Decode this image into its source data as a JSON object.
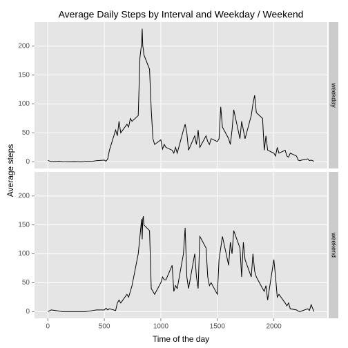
{
  "chart_data": {
    "type": "line",
    "facets": true,
    "title": "Average Daily Steps by Interval and Weekday / Weekend",
    "x_label": "Time of the day",
    "y_label": "Average steps",
    "xlim": [
      -117.75,
      2472.75
    ],
    "xticks": [
      0,
      500,
      1000,
      1500,
      2000
    ],
    "ylim": [
      -11.5,
      241.5
    ],
    "yticks": [
      0,
      50,
      100,
      150,
      200
    ],
    "grid": true,
    "x": [
      0,
      30,
      100,
      130,
      200,
      230,
      300,
      330,
      400,
      430,
      500,
      515,
      530,
      545,
      600,
      615,
      630,
      645,
      700,
      715,
      730,
      745,
      800,
      815,
      830,
      835,
      840,
      845,
      850,
      900,
      915,
      930,
      945,
      1000,
      1015,
      1030,
      1045,
      1100,
      1115,
      1130,
      1145,
      1200,
      1215,
      1230,
      1245,
      1300,
      1315,
      1330,
      1345,
      1400,
      1415,
      1430,
      1445,
      1500,
      1515,
      1530,
      1545,
      1600,
      1615,
      1630,
      1645,
      1700,
      1715,
      1730,
      1745,
      1800,
      1815,
      1830,
      1845,
      1900,
      1915,
      1930,
      1945,
      2000,
      2015,
      2030,
      2045,
      2100,
      2115,
      2130,
      2145,
      2200,
      2215,
      2230,
      2245,
      2300,
      2315,
      2330,
      2355
    ],
    "series": [
      {
        "name": "weekday",
        "color": "#000000",
        "values": [
          2.3,
          0.5,
          1,
          0.5,
          0.3,
          0.5,
          0.2,
          0.8,
          1,
          2,
          3,
          1,
          5,
          20,
          55,
          45,
          70,
          50,
          65,
          60,
          75,
          70,
          80,
          180,
          205,
          230,
          200,
          195,
          185,
          160,
          90,
          40,
          30,
          38,
          22,
          30,
          25,
          20,
          15,
          25,
          15,
          55,
          65,
          50,
          20,
          45,
          30,
          55,
          25,
          45,
          35,
          30,
          40,
          35,
          40,
          95,
          60,
          40,
          30,
          55,
          90,
          40,
          70,
          55,
          40,
          80,
          100,
          115,
          85,
          75,
          20,
          45,
          20,
          15,
          10,
          25,
          15,
          20,
          10,
          8,
          15,
          10,
          3,
          2,
          3,
          5,
          2,
          3,
          1
        ]
      },
      {
        "name": "weekend",
        "color": "#000000",
        "values": [
          0,
          3,
          1,
          0,
          0,
          0,
          0,
          0,
          2,
          3,
          3,
          6,
          3,
          5,
          2,
          15,
          20,
          15,
          30,
          25,
          35,
          45,
          100,
          130,
          160,
          125,
          160,
          165,
          150,
          140,
          40,
          35,
          30,
          50,
          60,
          55,
          55,
          80,
          35,
          45,
          40,
          100,
          145,
          60,
          40,
          100,
          60,
          40,
          130,
          110,
          60,
          45,
          50,
          30,
          90,
          110,
          130,
          80,
          120,
          100,
          140,
          110,
          60,
          120,
          90,
          60,
          100,
          70,
          60,
          40,
          35,
          45,
          20,
          90,
          60,
          25,
          30,
          15,
          10,
          15,
          5,
          3,
          1,
          0,
          1,
          5,
          2,
          12,
          0
        ]
      }
    ]
  }
}
